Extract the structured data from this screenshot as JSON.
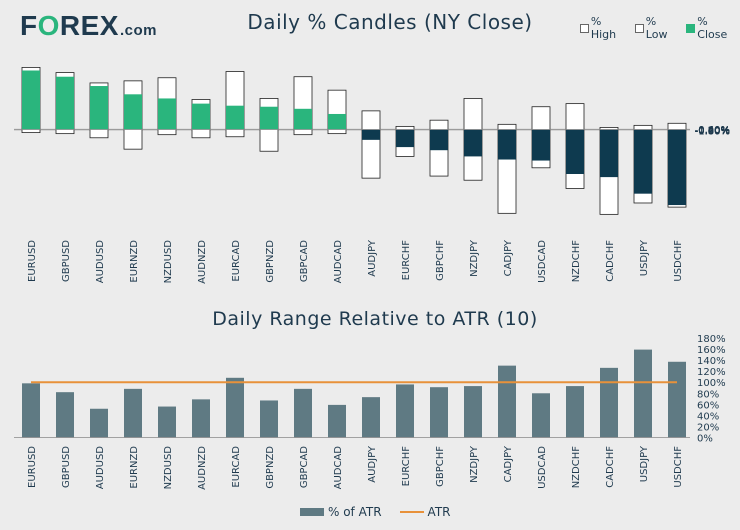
{
  "logo": {
    "part1": "F",
    "part2": "O",
    "part3": "REX",
    "part4": ".com"
  },
  "chart_data": [
    {
      "type": "bar",
      "title": "Daily % Candles (NY Close)",
      "legend": [
        "% High",
        "% Low",
        "% Close"
      ],
      "categories": [
        "EURUSD",
        "GBPUSD",
        "AUDUSD",
        "EURNZD",
        "NZDUSD",
        "AUDNZD",
        "EURCAD",
        "GBPNZD",
        "GBPCAD",
        "AUDCAD",
        "AUDJPY",
        "EURCHF",
        "GBPCHF",
        "NZDJPY",
        "CADJPY",
        "USDCAD",
        "NZDCHF",
        "CADCHF",
        "USDJPY",
        "USDCHF"
      ],
      "series": [
        {
          "name": "% High",
          "values": [
            0.6,
            0.55,
            0.45,
            0.47,
            0.5,
            0.29,
            0.56,
            0.3,
            0.51,
            0.38,
            0.18,
            0.03,
            0.09,
            0.3,
            0.05,
            0.22,
            0.25,
            0.02,
            0.04,
            0.06
          ]
        },
        {
          "name": "% Low",
          "values": [
            -0.03,
            -0.04,
            -0.08,
            -0.19,
            -0.05,
            -0.08,
            -0.07,
            -0.21,
            -0.05,
            -0.04,
            -0.47,
            -0.26,
            -0.45,
            -0.49,
            -0.81,
            -0.37,
            -0.57,
            -0.82,
            -0.71,
            -0.75
          ]
        },
        {
          "name": "% Close",
          "values": [
            0.57,
            0.51,
            0.42,
            0.34,
            0.3,
            0.25,
            0.23,
            0.22,
            0.2,
            0.15,
            -0.1,
            -0.17,
            -0.2,
            -0.26,
            -0.29,
            -0.3,
            -0.43,
            -0.46,
            -0.62,
            -0.73
          ]
        }
      ],
      "ylim": [
        -1.0,
        0.6
      ],
      "yticks": [
        "0.60%",
        "0.40%",
        "0.20%",
        "0.00%",
        "-0.20%",
        "-0.40%",
        "-0.60%",
        "-0.80%",
        "-1.00%"
      ],
      "colors": {
        "up": "#2ab57d",
        "down": "#0e3a4f",
        "range": "#ffffff"
      }
    },
    {
      "type": "bar",
      "title": "Daily Range Relative to ATR (10)",
      "categories": [
        "EURUSD",
        "GBPUSD",
        "AUDUSD",
        "EURNZD",
        "NZDUSD",
        "AUDNZD",
        "EURCAD",
        "GBPNZD",
        "GBPCAD",
        "AUDCAD",
        "AUDJPY",
        "EURCHF",
        "GBPCHF",
        "NZDJPY",
        "CADJPY",
        "USDCAD",
        "NZDCHF",
        "CADCHF",
        "USDJPY",
        "USDCHF"
      ],
      "series": [
        {
          "name": "% of ATR",
          "values": [
            98,
            82,
            52,
            88,
            56,
            69,
            108,
            67,
            88,
            59,
            73,
            96,
            91,
            93,
            130,
            80,
            93,
            126,
            159,
            137
          ]
        }
      ],
      "atr_level": 100,
      "ylim": [
        0,
        180
      ],
      "yticks": [
        "180%",
        "160%",
        "140%",
        "120%",
        "100%",
        "80%",
        "60%",
        "40%",
        "20%",
        "0%"
      ],
      "legend": [
        "% of ATR",
        "ATR"
      ],
      "colors": {
        "bar": "#5f7a83",
        "atr": "#e8913a"
      }
    }
  ]
}
